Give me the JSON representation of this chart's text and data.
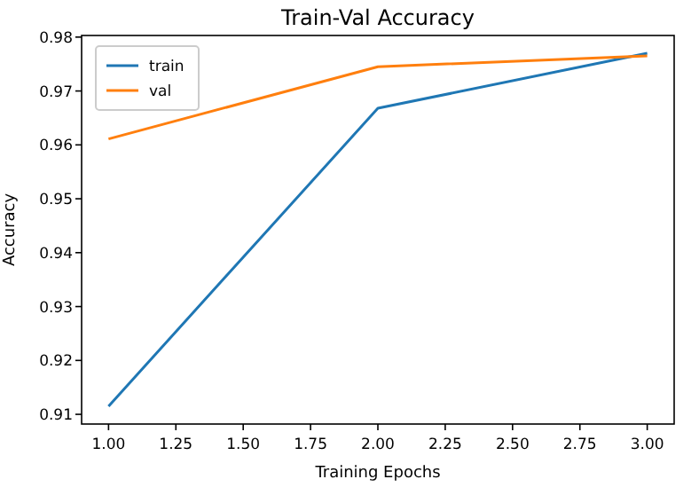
{
  "chart_data": {
    "type": "line",
    "title": "Train-Val Accuracy",
    "xlabel": "Training Epochs",
    "ylabel": "Accuracy",
    "x": [
      1,
      2,
      3
    ],
    "series": [
      {
        "name": "train",
        "color": "#1f77b4",
        "values": [
          0.9115,
          0.9668,
          0.977
        ]
      },
      {
        "name": "val",
        "color": "#ff7f0e",
        "values": [
          0.9611,
          0.9745,
          0.9765
        ]
      }
    ],
    "xlim": [
      0.9,
      3.1
    ],
    "xticks": [
      {
        "value": 1,
        "label": "1.00"
      },
      {
        "value": 1.25,
        "label": "1.25"
      },
      {
        "value": 1.5,
        "label": "1.50"
      },
      {
        "value": 1.75,
        "label": "1.75"
      },
      {
        "value": 2,
        "label": "2.00"
      },
      {
        "value": 2.25,
        "label": "2.25"
      },
      {
        "value": 2.5,
        "label": "2.50"
      },
      {
        "value": 2.75,
        "label": "2.75"
      },
      {
        "value": 3,
        "label": "3.00"
      }
    ],
    "ylim": [
      0.9082,
      0.9803
    ],
    "yticks": [
      0.91,
      0.92,
      0.93,
      0.94,
      0.95,
      0.96,
      0.97,
      0.98
    ],
    "legend": "top left",
    "grid": false,
    "marker": "none",
    "line_style": "solid"
  }
}
